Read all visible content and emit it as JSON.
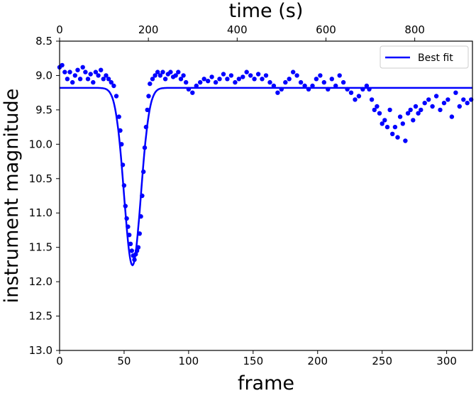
{
  "chart_data": {
    "type": "scatter",
    "title": "",
    "xlabel": "frame",
    "ylabel": "instrument magnitude",
    "x2label": "time (s)",
    "xlim": [
      0,
      320
    ],
    "ylim": [
      13.0,
      8.5
    ],
    "y_inverted": true,
    "x2lim": [
      0,
      930
    ],
    "x_ticks": [
      0,
      50,
      100,
      150,
      200,
      250,
      300
    ],
    "x2_ticks": [
      0,
      200,
      400,
      600,
      800
    ],
    "y_ticks": [
      8.5,
      9.0,
      9.5,
      10.0,
      10.5,
      11.0,
      11.5,
      12.0,
      12.5,
      13.0
    ],
    "y_tick_labels": [
      "8.5",
      "9.0",
      "9.5",
      "10.0",
      "10.5",
      "11.0",
      "11.5",
      "12.0",
      "12.5",
      "13.0"
    ],
    "grid": false,
    "legend_position": "top-right",
    "series": [
      {
        "kind": "scatter",
        "color": "#0000ff",
        "x": [
          0,
          2,
          4,
          6,
          8,
          10,
          12,
          14,
          16,
          18,
          20,
          22,
          24,
          26,
          28,
          30,
          32,
          34,
          36,
          38,
          40,
          42,
          44,
          46,
          47,
          48,
          49,
          50,
          51,
          52,
          53,
          54,
          55,
          56,
          57,
          58,
          59,
          60,
          61,
          62,
          63,
          64,
          65,
          66,
          67,
          68,
          69,
          70,
          72,
          74,
          76,
          78,
          80,
          82,
          84,
          86,
          88,
          90,
          92,
          94,
          96,
          98,
          100,
          103,
          106,
          109,
          112,
          115,
          118,
          121,
          124,
          127,
          130,
          133,
          136,
          139,
          142,
          145,
          148,
          151,
          154,
          157,
          160,
          163,
          166,
          169,
          172,
          175,
          178,
          181,
          184,
          187,
          190,
          193,
          196,
          199,
          202,
          205,
          208,
          211,
          214,
          217,
          220,
          223,
          226,
          229,
          232,
          235,
          238,
          240,
          242,
          244,
          246,
          248,
          250,
          252,
          254,
          256,
          258,
          260,
          262,
          264,
          266,
          268,
          270,
          272,
          274,
          276,
          278,
          280,
          283,
          286,
          289,
          292,
          295,
          298,
          301,
          304,
          307,
          310,
          313,
          316,
          319
        ],
        "y": [
          8.88,
          8.85,
          8.95,
          9.05,
          8.95,
          9.1,
          9.0,
          8.92,
          9.05,
          8.88,
          8.95,
          9.05,
          8.98,
          9.1,
          8.95,
          9.0,
          8.92,
          9.05,
          9.0,
          9.05,
          9.1,
          9.15,
          9.3,
          9.6,
          9.8,
          10.0,
          10.3,
          10.6,
          10.9,
          11.08,
          11.2,
          11.32,
          11.45,
          11.55,
          11.62,
          11.68,
          11.6,
          11.55,
          11.5,
          11.3,
          11.05,
          10.75,
          10.4,
          10.05,
          9.75,
          9.5,
          9.3,
          9.12,
          9.05,
          9.0,
          8.95,
          9.0,
          8.95,
          9.05,
          8.98,
          8.95,
          9.02,
          9.0,
          8.95,
          9.05,
          9.0,
          9.1,
          9.2,
          9.25,
          9.15,
          9.1,
          9.05,
          9.08,
          9.02,
          9.1,
          9.05,
          8.98,
          9.05,
          9.0,
          9.1,
          9.05,
          9.02,
          8.95,
          9.0,
          9.05,
          8.98,
          9.05,
          9.0,
          9.1,
          9.15,
          9.25,
          9.2,
          9.1,
          9.05,
          8.95,
          9.0,
          9.1,
          9.15,
          9.2,
          9.15,
          9.05,
          9.0,
          9.1,
          9.2,
          9.05,
          9.15,
          9.0,
          9.1,
          9.2,
          9.25,
          9.35,
          9.3,
          9.2,
          9.15,
          9.2,
          9.35,
          9.5,
          9.45,
          9.55,
          9.7,
          9.65,
          9.75,
          9.5,
          9.85,
          9.75,
          9.9,
          9.6,
          9.7,
          9.95,
          9.55,
          9.5,
          9.65,
          9.45,
          9.55,
          9.5,
          9.4,
          9.35,
          9.45,
          9.3,
          9.5,
          9.4,
          9.35,
          9.6,
          9.25,
          9.45,
          9.35,
          9.4,
          9.35
        ]
      },
      {
        "kind": "line",
        "name": "Best fit",
        "color": "#0000ff",
        "baseline": 9.18,
        "dip_depth": 2.58,
        "dip_center": 56.5,
        "dip_sigma": 6.5
      }
    ]
  }
}
